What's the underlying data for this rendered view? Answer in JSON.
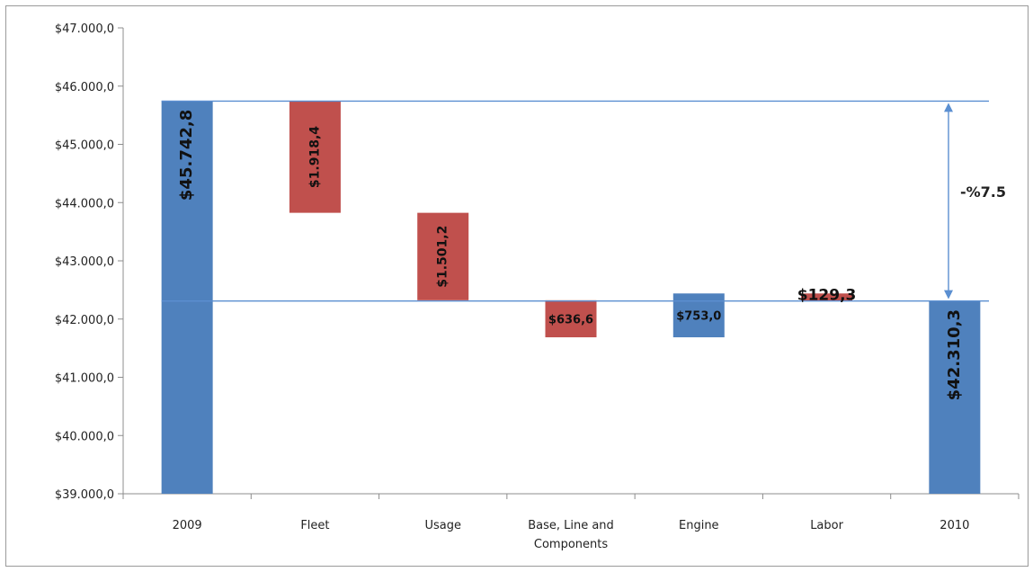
{
  "chart_data": {
    "type": "bar",
    "subtype": "waterfall",
    "categories": [
      "2009",
      "Fleet",
      "Usage",
      "Base, Line and Components",
      "Engine",
      "Labor",
      "2010"
    ],
    "category_lines": [
      [
        "2009"
      ],
      [
        "Fleet"
      ],
      [
        "Usage"
      ],
      [
        "Base, Line and",
        "Components"
      ],
      [
        "Engine"
      ],
      [
        "Labor"
      ],
      [
        "2010"
      ]
    ],
    "bars": [
      {
        "category": "2009",
        "kind": "total",
        "start": 39000,
        "end": 45742.8,
        "label": "$45.742,8"
      },
      {
        "category": "Fleet",
        "kind": "decrease",
        "start": 45742.8,
        "end": 43824.4,
        "label": "$1.918,4"
      },
      {
        "category": "Usage",
        "kind": "decrease",
        "start": 43824.4,
        "end": 42323.2,
        "label": "$1.501,2"
      },
      {
        "category": "Base, Line and Components",
        "kind": "decrease",
        "start": 42323.2,
        "end": 41686.6,
        "label": "$636,6"
      },
      {
        "category": "Engine",
        "kind": "increase",
        "start": 41686.6,
        "end": 42439.6,
        "label": "$753,0"
      },
      {
        "category": "Labor",
        "kind": "decrease",
        "start": 42439.6,
        "end": 42310.3,
        "label": "$129,3"
      },
      {
        "category": "2010",
        "kind": "total",
        "start": 39000,
        "end": 42310.3,
        "label": "$42.310,3"
      }
    ],
    "ylim": [
      39000,
      47000
    ],
    "yticks": [
      39000,
      40000,
      41000,
      42000,
      43000,
      44000,
      45000,
      46000,
      47000
    ],
    "ytick_labels": [
      "$39.000,0",
      "$40.000,0",
      "$41.000,0",
      "$42.000,0",
      "$43.000,0",
      "$44.000,0",
      "$45.000,0",
      "$46.000,0",
      "$47.000,0"
    ],
    "reference_lines": [
      45742.8,
      42310.3
    ],
    "change_annotation": "-%7.5",
    "grid": false,
    "legend": "none",
    "colors": {
      "total": "#4f81bd",
      "increase": "#4f81bd",
      "decrease": "#c0504d",
      "reference": "#5b8fd1",
      "axis": "#8c8c8c"
    }
  }
}
